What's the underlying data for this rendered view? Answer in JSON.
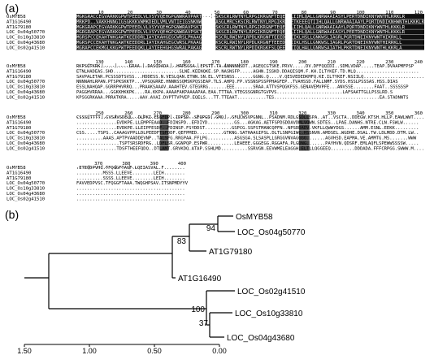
{
  "panel_a": {
    "label": "(a)",
    "blocks": [
      {
        "positions": [
          "10",
          "20",
          "30",
          "40",
          "50",
          "60",
          "70",
          "80",
          "90",
          "100",
          "110",
          "120"
        ],
        "rows": [
          {
            "name": "OsMYB58",
            "seq": "MGKGRACCEGVARKKGPWTPEEDLVLVSYVQEHGPGNWRAVPARTGLMRCSKSCRLRWTNYLRPGIKRGNFTEQEEGLIIHLQALLGNRWAAIASYLPERTDNDIKNYWNTHLKRKLR"
          },
          {
            "name": "AT1G16490",
            "seq": "MRKPD..VAKKHNNGIGSGKKKVWMKDEDLVMLVNTIEIGSNKNWHTPAEASGLMRCSKSCRLRWTNYLRPGIKRGNFTKEEEQTIIHLQALLGNRWAAIAAYLPQRTDNDIKNHWNTHLKKKLR"
          },
          {
            "name": "AT1G79180",
            "seq": "MGKGRAPCEGVARKKGPWTPEEDLVLVSYVQEHGPGNWRAVPSKTGLMRCSKSCRLRWTNYLRPGIKRGNFTEQEEGLIIHLQALLGNRWAAIAAYLPQRTDNDIKNYWNTHLKKKLR"
          },
          {
            "name": "LOC_Os04g50770",
            "seq": "MGRGRAPCEGVARKKGPWTPEEDLVLVSYVQEHGPGNWRAVPSKTGLMRCSKSCRLRWTNYLRPGIKRGNFTEQEEGLIIHLQALLGNRWAAIASYLPERTDNDIKNYWNTHLKKKLR"
          },
          {
            "name": "LOC_Os10g33810",
            "seq": "MGRSPCCEKAHTNKGAWTKEEDDRLIAYIKAHGEGCWRSLPKAAGLLRCGKSCRLRWINYLRPDLKRGNFTEEEDELIIKLHSLLGNKWSLIAGRLPGRTDNEIKNYWNTHIKRKLL"
          },
          {
            "name": "LOC_Os04g43680",
            "seq": "MGRSPCCEKAHTNKGAWTKEEDDRLIAYIKAHGEGCWRSLPKAAGLLRCGKSCRLRWINYLRPDLKRGNFTEEEDELIIKLHSLLGNKWSLIAGRLPGRTDNEIKNYWNTHIRRKLL"
          },
          {
            "name": "LOC_Os02g41510",
            "seq": "MGRAPCCEKMGLKKGPWTPEEDQKLLAYIEEHGHGSWRALPAKAGLQRCGKSCRLRWTNYLRPDIKRGKFSLQEEQTIIQLHALLGNRWSAIATHLPKRTDNEIKNYWNTHLKKRLA"
          }
        ]
      },
      {
        "positions": [
          "130",
          "140",
          "150",
          "160",
          "170",
          "180",
          "190",
          "200",
          "210",
          "220",
          "230",
          "240"
        ],
        "rows": [
          {
            "name": "OsMYB58",
            "seq": "RKPSGTKRK...........GRAA...DASCDADA...HRPSSSA..EPSTT.TA.ANNNNNSDT..AGEQCGTSKE.PRVV.....DV.DFFQQIDI..SDMLVDAP.....TEAP.DVAAPMFPSP"
          },
          {
            "name": "AT1G16490",
            "seq": "ETNLHADEAS.SHD.........................SLNE.KEENQKE.SP.NASNSFP.....AGHN.ISSKD.DDAQISQM.F.KH.ILTYKEF.TD.MLQ........................"
          },
          {
            "name": "AT1G79180",
            "seq": "SAVPALETAR.PCSSSDTSVSS...HDDESS.N.VESLQAN.ETNN.SN.EL.VTESNSS.......GGNG.Q....V.QESVEDEDKMFQ.KE.ILTYKEF.NSIILQ......................."
          },
          {
            "name": "LOC_Os04g50770",
            "seq": "NNNNAHLRPAN.PTSPKSKKTP...VPSQGRRE.HNNNSSQMSKPQSSEAP.TLS.AHPQ.FP.VSSNSPSSPPHAGFEP..TVAHSSD.FALLNMF.SYDS.HSSLPSSSAS.HSS.DIAS"
          },
          {
            "name": "LOC_Os10g33810",
            "seq": "ESSLNAHQAP.GGRRPHVRRQ...PRAAKSAAAV.AAAHTEV.GTEGRRG.......EEE.......SRAA.ATTVSPQGKFSS.GENAVEMVPFE...ANVSSE........FAAT..SSSSSSP"
          },
          {
            "name": "LOC_Os04g43680",
            "seq": "PAGGHVRRAA...GGKKHKKPK....RA.KKPA.AAAAFAKPAAAAPAA.EAA.TTTAA.VTEGSSGNRGTGVPVS.........................LAFSAATTGLLPSSLRD.S"
          },
          {
            "name": "LOC_Os02g41510",
            "seq": "KPSGGRKAAA.PRRATKRA.....AAV.AVAI.DVPTTVPVEP.EQELS...TT.TTEAAT...........TES........................................EA.STADNNTS"
          }
        ]
      },
      {
        "positions": [
          "250",
          "260",
          "270",
          "280",
          "290",
          "300",
          "310",
          "320",
          "330",
          "340",
          "350",
          "360"
        ],
        "rows": [
          {
            "name": "OsMYB58",
            "seq": "CSSSLTTTT..CVSAVSDELL..DLPKI.ESSFDP..IDPSD..SFQPGD..GMQ...SFLCWSVPGNNL..PSADNM.RDLGSDLLSPA..AT..VSCTA..DDEGW.KTSH.HLLP.EAWLWWT...."
          },
          {
            "name": "AT1G16490",
            "seq": "...............EVDKPE.LLEMPFEAAD..FDINSPD..EFDIYD..........GS...AGKAG.AETFSPDSDDAVDMLVQWN.SDTES..LPAE.DANHS.NTRE.CLN.FSWLW......"
          },
          {
            "name": "AT1G79180",
            "seq": "...............EVDKPE.LLEIPFESDF..FDINSP.FSYDDST..........GSPCG.SSPSTMANCQPFN..NPSDDADV.VKFLLQWWYDGS......AMM.ESNL.EEKK........."
          },
          {
            "name": "LOC_Os04g50770",
            "seq": "CSS.....TSPS..CAAAGVPPLLDLPEEDFTSFDDF.QEFPMED..........GTKNG.SATHAAGIPSL.DLTLSNPGIWC.HSSNVN.AMDSEL.WGDHE.DSAL.TW.LDLMDD.DTM.LW.."
          },
          {
            "name": "LOC_Os10g33810",
            "seq": "..........AAAS.APTPVAADDEVNP..TALSFG.RRGPAA.FFLPG..........ASGSGA.SLSASPLLGRGGVNVAGGGG.......AGVHSD.EAPMA.VE.AMMTG.MS.......WWW"
          },
          {
            "name": "LOC_Os04g43680",
            "seq": "................TSPTSRSRDFRG..LDFLSR.GGNPQP.ESPWR..........LEAEEE.GGGEGG.RGGAFA.PLGDNG.......PAYHVN.QDSRF.EMLAQFLSPEWWSSSSW....."
          },
          {
            "name": "LOC_Os02g41510",
            "seq": "...............TDSFTHEEFQDQ..DTLAMT.GRVKDQ.ATAP.SSHLMD..........SSRVGN.EEVWMELEAGGH.ELTLLQGGEEQ.........DDDADA.FFFCRPGG.SWWW.M...."
          }
        ]
      },
      {
        "positions": [
          "370",
          "380",
          "390",
          "400"
        ],
        "rows": [
          {
            "name": "OsMYB58",
            "seq": ".ETEQDPVHC.TFQGGFTASF.LQEIASVAL.F........"
          },
          {
            "name": "AT1G16490",
            "seq": "..........MSSS.LLEEVE........LEIH........"
          },
          {
            "name": "AT1G79180",
            "seq": "..........SSSS.LLEEVE........LEIH........"
          },
          {
            "name": "LOC_Os04g50770",
            "seq": "FAVVEDPVSC.TFQGGFTAAA.TWQGHPSAV.ITSNPMDYYV"
          },
          {
            "name": "LOC_Os10g33810",
            "seq": "........................................."
          },
          {
            "name": "LOC_Os04g43680",
            "seq": "........................................."
          },
          {
            "name": "LOC_Os02g41510",
            "seq": "........................................."
          }
        ]
      }
    ]
  },
  "panel_b": {
    "label": "(b)",
    "leaves": [
      "OsMYB58",
      "LOC_Os04g50770",
      "AT1G79180",
      "AT1G16490",
      "LOC_Os02g41510",
      "LOC_Os10g33810",
      "LOC_Os04g43680"
    ],
    "bootstraps": [
      "94",
      "83",
      "100",
      "37"
    ],
    "scale_ticks": [
      "1.50",
      "1.00",
      "0.50",
      "0.00"
    ],
    "scale_values": [
      1.5,
      1.0,
      0.5,
      0.0
    ]
  }
}
